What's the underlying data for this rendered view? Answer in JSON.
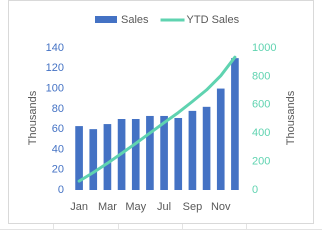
{
  "chart_data": {
    "type": "bar",
    "categories": [
      "Jan",
      null,
      "Mar",
      null,
      "May",
      null,
      "Jul",
      null,
      "Sep",
      null,
      "Nov",
      null
    ],
    "series": [
      {
        "name": "Sales",
        "type": "bar",
        "color": "#4472c4",
        "values": [
          63,
          60,
          65,
          70,
          70,
          73,
          73,
          71,
          78,
          82,
          100,
          130
        ]
      },
      {
        "name": "YTD Sales",
        "type": "line",
        "axis": "y2",
        "color": "#5fd3b0",
        "values": [
          63,
          123,
          188,
          258,
          328,
          401,
          474,
          545,
          623,
          705,
          805,
          935
        ]
      }
    ],
    "y_label": "Thousands",
    "y2_label": "Thousands",
    "ylim": [
      0,
      140
    ],
    "yticks": [
      0,
      20,
      40,
      60,
      80,
      100,
      120,
      140
    ],
    "y2lim": [
      0,
      1000
    ],
    "y2ticks": [
      0,
      200,
      400,
      600,
      800,
      1000
    ],
    "grid": false,
    "legend": "top"
  }
}
